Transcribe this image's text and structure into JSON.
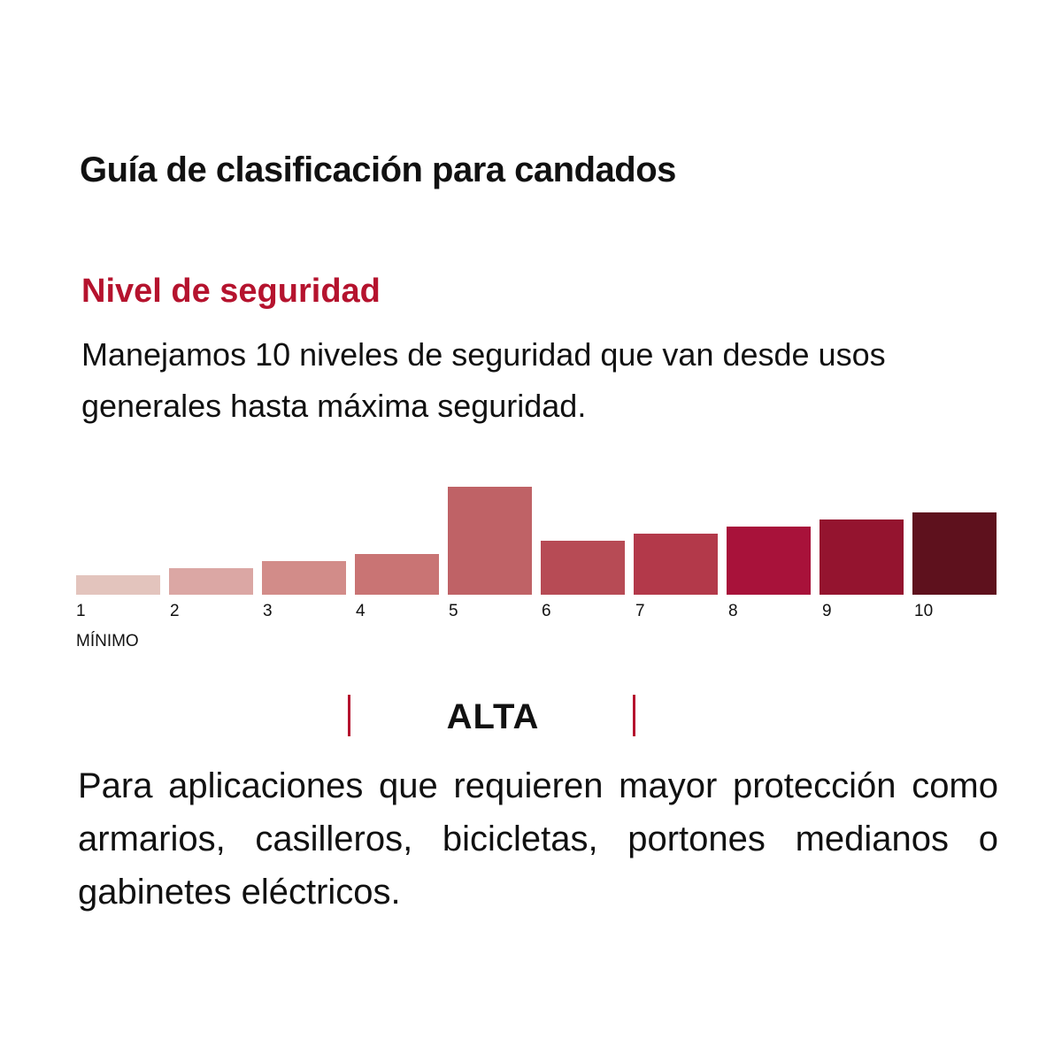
{
  "header": {
    "title": "Guía de clasificación para candados"
  },
  "section": {
    "heading": "Nivel de seguridad",
    "text": "Manejamos 10 niveles de seguridad que van desde usos generales hasta máxima seguridad."
  },
  "scale": {
    "levels": [
      "1",
      "2",
      "3",
      "4",
      "5",
      "6",
      "7",
      "8",
      "9",
      "10"
    ],
    "min_label": "MÍNIMO"
  },
  "selected": {
    "label": "ALTA",
    "description": "Para aplicaciones que requieren mayor protección como armarios, casilleros, bicicletas, portones medianos o gabinetes eléctricos."
  }
}
